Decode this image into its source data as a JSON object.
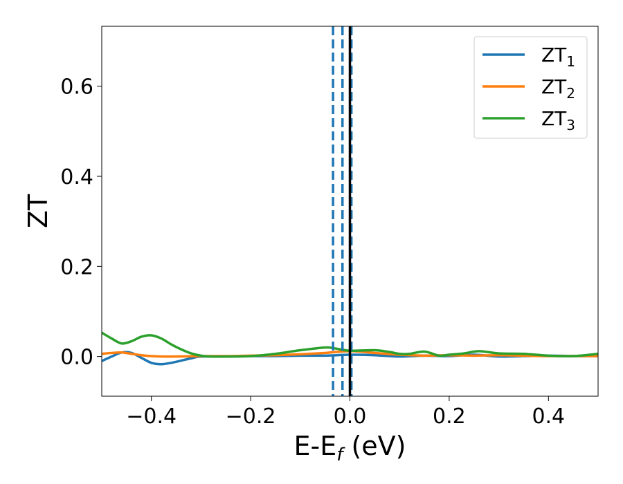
{
  "chart_data": {
    "type": "line",
    "xlabel": {
      "main": "E-E",
      "sub": "f",
      "rest": " (eV)"
    },
    "ylabel": "ZT",
    "xlim": [
      -0.5,
      0.5
    ],
    "ylim": [
      -0.088,
      0.733
    ],
    "xticks": [
      -0.4,
      -0.2,
      0.0,
      0.2,
      0.4
    ],
    "xtick_labels": [
      "−0.4",
      "−0.2",
      "0.0",
      "0.2",
      "0.4"
    ],
    "yticks": [
      0.0,
      0.2,
      0.4,
      0.6
    ],
    "ytick_labels": [
      "0.0",
      "0.2",
      "0.4",
      "0.6"
    ],
    "grid": false,
    "legend_position": "top-right",
    "vertical_lines": [
      {
        "x": -0.034,
        "style": "dashed",
        "color": "#1f77b4"
      },
      {
        "x": -0.015,
        "style": "dashed",
        "color": "#1f77b4"
      },
      {
        "x": 0.003,
        "style": "dashed",
        "color": "#1f77b4"
      },
      {
        "x": 0.0,
        "style": "solid",
        "color": "#000000"
      }
    ],
    "series": [
      {
        "name": "ZT",
        "sub": "1",
        "color": "#1f77b4",
        "x": [
          -0.5,
          -0.48,
          -0.46,
          -0.44,
          -0.42,
          -0.4,
          -0.38,
          -0.36,
          -0.34,
          -0.32,
          -0.3,
          -0.25,
          -0.2,
          -0.15,
          -0.1,
          -0.05,
          0.0,
          0.05,
          0.1,
          0.15,
          0.2,
          0.25,
          0.3,
          0.35,
          0.4,
          0.45,
          0.5
        ],
        "y": [
          -0.01,
          0.0,
          0.009,
          0.008,
          -0.003,
          -0.014,
          -0.017,
          -0.014,
          -0.009,
          -0.004,
          0.0,
          0.0,
          0.001,
          0.001,
          0.002,
          0.002,
          0.004,
          0.003,
          0.0,
          0.002,
          0.001,
          0.004,
          0.0,
          0.001,
          0.002,
          0.001,
          0.001
        ]
      },
      {
        "name": "ZT",
        "sub": "2",
        "color": "#ff7f0e",
        "x": [
          -0.5,
          -0.48,
          -0.46,
          -0.44,
          -0.42,
          -0.4,
          -0.38,
          -0.35,
          -0.3,
          -0.25,
          -0.2,
          -0.15,
          -0.1,
          -0.05,
          0.0,
          0.05,
          0.1,
          0.15,
          0.2,
          0.25,
          0.3,
          0.35,
          0.4,
          0.45,
          0.5
        ],
        "y": [
          0.006,
          0.008,
          0.009,
          0.006,
          0.003,
          0.001,
          0.0,
          0.0,
          0.001,
          0.001,
          0.002,
          0.003,
          0.005,
          0.008,
          0.012,
          0.008,
          0.004,
          0.002,
          0.003,
          0.002,
          0.003,
          0.002,
          0.001,
          0.001,
          0.001
        ]
      },
      {
        "name": "ZT",
        "sub": "3",
        "color": "#2ca02c",
        "x": [
          -0.5,
          -0.48,
          -0.46,
          -0.44,
          -0.42,
          -0.4,
          -0.38,
          -0.36,
          -0.34,
          -0.32,
          -0.3,
          -0.28,
          -0.25,
          -0.2,
          -0.15,
          -0.1,
          -0.05,
          -0.03,
          0.0,
          0.05,
          0.08,
          0.1,
          0.12,
          0.15,
          0.18,
          0.2,
          0.23,
          0.26,
          0.3,
          0.35,
          0.4,
          0.45,
          0.5
        ],
        "y": [
          0.053,
          0.04,
          0.029,
          0.034,
          0.044,
          0.047,
          0.04,
          0.027,
          0.016,
          0.007,
          0.002,
          0.0,
          0.0,
          0.001,
          0.006,
          0.014,
          0.02,
          0.018,
          0.013,
          0.014,
          0.01,
          0.006,
          0.006,
          0.011,
          0.002,
          0.004,
          0.007,
          0.012,
          0.007,
          0.006,
          0.002,
          0.001,
          0.006
        ]
      }
    ]
  }
}
